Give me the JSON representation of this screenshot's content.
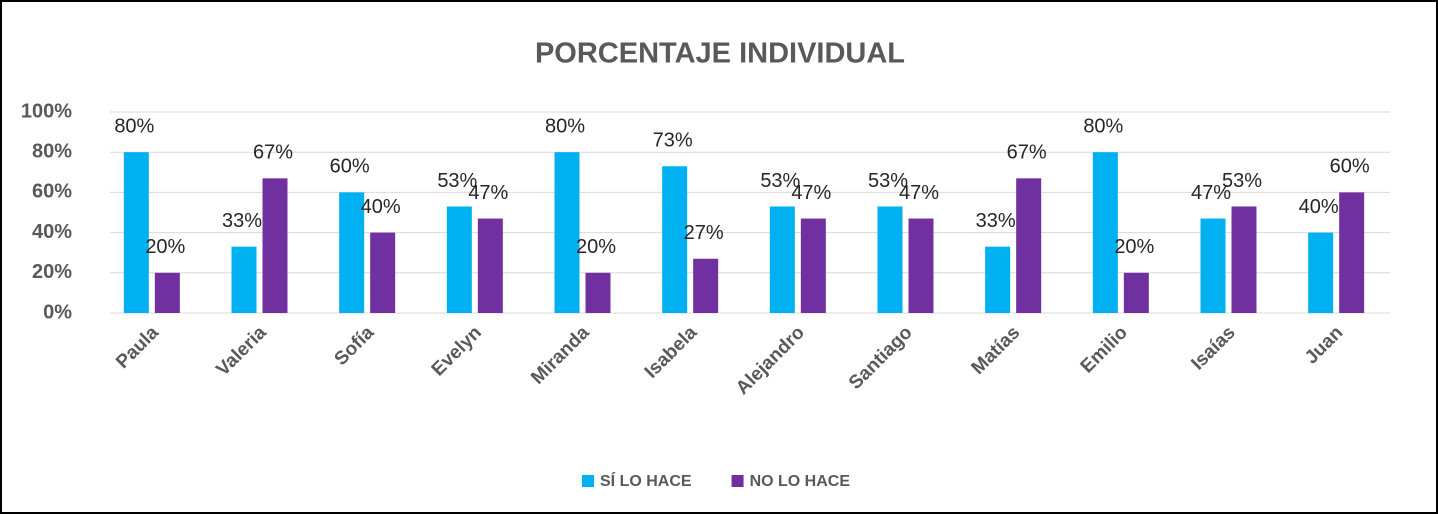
{
  "chart_data": {
    "type": "bar",
    "title": "PORCENTAJE INDIVIDUAL",
    "categories": [
      "Paula",
      "Valeria",
      "Sofía",
      "Evelyn",
      "Miranda",
      "Isabela",
      "Alejandro",
      "Santiago",
      "Matías",
      "Emilio",
      "Isaías",
      "Juan"
    ],
    "series": [
      {
        "name": "SÍ LO HACE",
        "color": "#00b0f0",
        "values": [
          80,
          33,
          60,
          53,
          80,
          73,
          53,
          53,
          33,
          80,
          47,
          40
        ],
        "value_labels": [
          "80%",
          "33%",
          "60%",
          "53%",
          "80%",
          "73%",
          "53%",
          "53%",
          "33%",
          "80%",
          "47%",
          "40%"
        ]
      },
      {
        "name": "NO LO HACE",
        "color": "#7030a0",
        "values": [
          20,
          67,
          40,
          47,
          20,
          27,
          47,
          47,
          67,
          20,
          53,
          60
        ],
        "value_labels": [
          "20%",
          "67%",
          "40%",
          "47%",
          "20%",
          "27%",
          "47%",
          "47%",
          "67%",
          "20%",
          "53%",
          "60%"
        ]
      }
    ],
    "ylim": [
      0,
      100
    ],
    "yticks": [
      {
        "value": 0,
        "label": "0%"
      },
      {
        "value": 20,
        "label": "20%"
      },
      {
        "value": 40,
        "label": "40%"
      },
      {
        "value": 60,
        "label": "60%"
      },
      {
        "value": 80,
        "label": "80%"
      },
      {
        "value": 100,
        "label": "100%"
      }
    ],
    "grid": true,
    "legend": "bottom"
  }
}
